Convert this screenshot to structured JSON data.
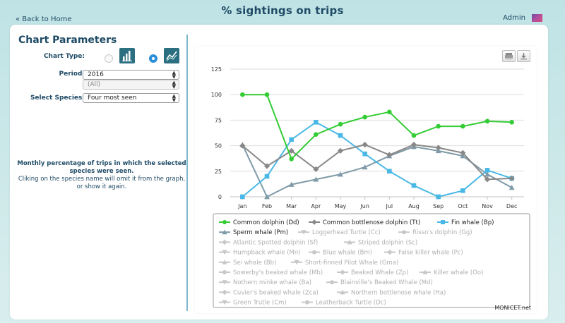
{
  "header": {
    "title": "% sightings on trips",
    "back_link": "« Back to Home",
    "user": "Admin"
  },
  "params": {
    "title": "Chart Parameters",
    "chart_type_label": "Chart Type:",
    "chart_type_selected": "line",
    "period_label": "Period:",
    "period_value": "2016",
    "period_sub_value": "(All)",
    "species_label": "Select Species:",
    "species_value": "Four most seen",
    "info_line1": "Monthly percentage of trips in which the selected",
    "info_line2": "species were seen.",
    "info_line3": "Cliking on the species name will omit it from the graph,",
    "info_line4": "or show it again."
  },
  "credit": "MONICET.net",
  "chart_data": {
    "type": "line",
    "categories": [
      "Jan",
      "Feb",
      "Mar",
      "Apr",
      "May",
      "Jun",
      "Jul",
      "Aug",
      "Sep",
      "Oct",
      "Nov",
      "Dec"
    ],
    "ylim": [
      0,
      125
    ],
    "yticks": [
      0,
      25,
      50,
      75,
      100,
      125
    ],
    "grid": true,
    "legend_position": "bottom",
    "series": [
      {
        "name": "Common dolphin (Dd)",
        "color": "#33cc33",
        "marker": "circle",
        "visible": true,
        "values": [
          100,
          100,
          37,
          61,
          71,
          78,
          83,
          60,
          69,
          69,
          74,
          73
        ]
      },
      {
        "name": "Common bottlenose dolphin (Tt)",
        "color": "#888888",
        "marker": "diamond",
        "visible": true,
        "values": [
          50,
          30,
          45,
          27,
          45,
          51,
          41,
          51,
          48,
          43,
          17,
          18
        ]
      },
      {
        "name": "Fin whale (Bp)",
        "color": "#4ab8e6",
        "marker": "square",
        "visible": true,
        "values": [
          0,
          20,
          56,
          73,
          60,
          42,
          25,
          11,
          0,
          6,
          26,
          18
        ]
      },
      {
        "name": "Sperm whale (Pm)",
        "color": "#7f9aa8",
        "marker": "triangle",
        "visible": true,
        "values": [
          51,
          0,
          12,
          17,
          22,
          29,
          40,
          49,
          45,
          40,
          22,
          9
        ]
      },
      {
        "name": "Loggerhead Turtle (Cc)",
        "visible": false
      },
      {
        "name": "Risso's dolphin (Gg)",
        "visible": false
      },
      {
        "name": "Atlantic Spotted dolphin (Sf)",
        "visible": false
      },
      {
        "name": "Striped dolphin (Sc)",
        "visible": false
      },
      {
        "name": "Humpback whale (Mn)",
        "visible": false
      },
      {
        "name": "Blue whale (Bm)",
        "visible": false
      },
      {
        "name": "False killer whale (Pc)",
        "visible": false
      },
      {
        "name": "Sei whale (Bb)",
        "visible": false
      },
      {
        "name": "Short-finned Pilot Whale (Gma)",
        "visible": false
      },
      {
        "name": "Sowerby's beaked whale (Mb)",
        "visible": false
      },
      {
        "name": "Beaked Whale (Zp)",
        "visible": false
      },
      {
        "name": "Killer whale (Oo)",
        "visible": false
      },
      {
        "name": "Nothern minke whale (Ba)",
        "visible": false
      },
      {
        "name": "Blainville's Beaked Whale (Md)",
        "visible": false
      },
      {
        "name": "Cuvier's beaked whale (Zca)",
        "visible": false
      },
      {
        "name": "Northern bottlenose whale (Ha)",
        "visible": false
      },
      {
        "name": "Green Trutle (Cm)",
        "visible": false
      },
      {
        "name": "Leatherback Turtle (Dc)",
        "visible": false
      }
    ]
  }
}
